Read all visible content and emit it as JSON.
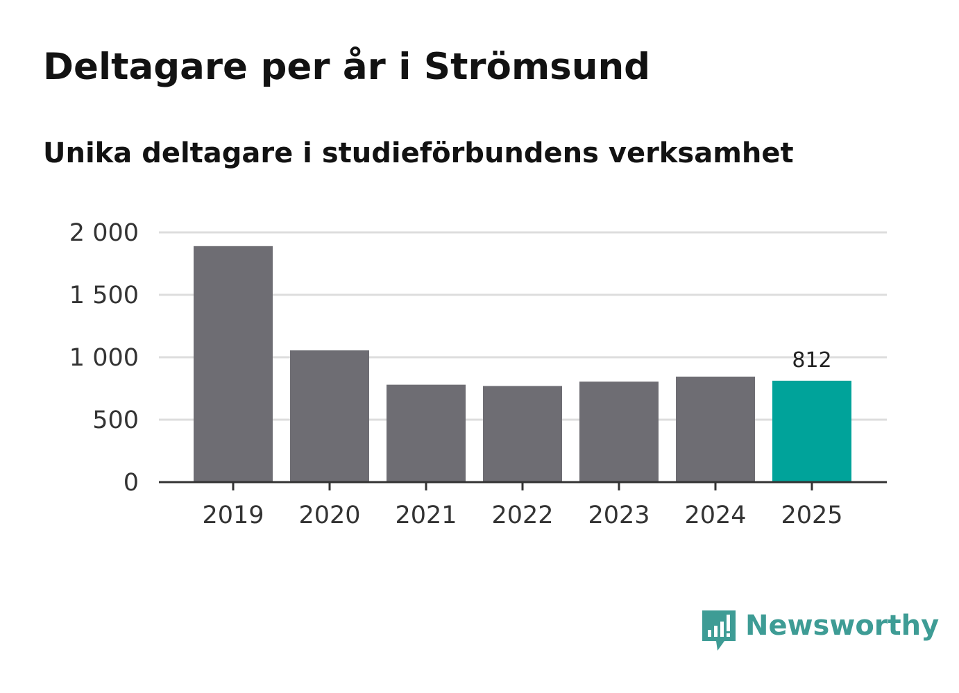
{
  "title": "Deltagare per år i Strömsund",
  "subtitle": "Unika deltagare i studieförbundens verksamhet",
  "colors": {
    "bar": "#6e6d73",
    "highlight": "#00a39a",
    "grid": "#dddddd",
    "axis": "#333333",
    "brand": "#3e9c95"
  },
  "chart_data": {
    "type": "bar",
    "categories": [
      "2019",
      "2020",
      "2021",
      "2022",
      "2023",
      "2024",
      "2025"
    ],
    "values": [
      1890,
      1055,
      780,
      770,
      805,
      845,
      812
    ],
    "highlight_index": 6,
    "data_labels": [
      {
        "index": 6,
        "text": "812"
      }
    ],
    "ylim": [
      0,
      2000
    ],
    "yticks": [
      0,
      500,
      1000,
      1500,
      2000
    ],
    "ytick_labels": [
      "0",
      "500",
      "1 000",
      "1 500",
      "2 000"
    ],
    "grid": true,
    "xlabel": "",
    "ylabel": ""
  },
  "logo": {
    "text": "Newsworthy",
    "icon": "bar-chart-speech-bubble-icon"
  }
}
